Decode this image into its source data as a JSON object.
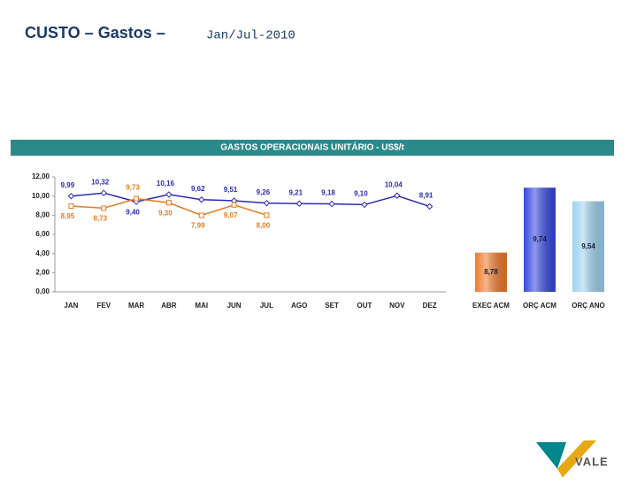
{
  "slide": {
    "title": "CUSTO – Gastos –",
    "period": "Jan/Jul-2010",
    "logo": "VALE"
  },
  "chart_data": [
    {
      "type": "line",
      "title": "GASTOS OPERACIONAIS UNITÁRIO - US$/t",
      "categories": [
        "JAN",
        "FEV",
        "MAR",
        "ABR",
        "MAI",
        "JUN",
        "JUL",
        "AGO",
        "SET",
        "OUT",
        "NOV",
        "DEZ"
      ],
      "series": [
        {
          "color": "#2a2ab8",
          "marker": "diamond",
          "values": [
            9.99,
            10.32,
            9.4,
            10.16,
            9.62,
            9.51,
            9.26,
            9.21,
            9.18,
            9.1,
            10.04,
            8.91
          ],
          "value_labels": [
            "9,99",
            "10,32",
            "9,40",
            "10,16",
            "9,62",
            "9,51",
            "9,26",
            "9,21",
            "9,18",
            "9,10",
            "10,04",
            "8,91"
          ]
        },
        {
          "color": "#e87a1e",
          "marker": "square",
          "values": [
            8.95,
            8.73,
            9.73,
            9.3,
            7.99,
            9.07,
            8.0,
            null,
            null,
            null,
            null,
            null
          ],
          "value_labels": [
            "8,95",
            "8,73",
            "9,73",
            "9,30",
            "7,99",
            "9,07",
            "8,00",
            null,
            null,
            null,
            null,
            null
          ]
        }
      ],
      "ylim": [
        0,
        12
      ],
      "yticks": [
        {
          "value": 0,
          "label": "0,00"
        },
        {
          "value": 2,
          "label": "2,00"
        },
        {
          "value": 4,
          "label": "4,00"
        },
        {
          "value": 6,
          "label": "6,00"
        },
        {
          "value": 8,
          "label": "8,00"
        },
        {
          "value": 10,
          "label": "10,00"
        },
        {
          "value": 12,
          "label": "12,00"
        }
      ]
    },
    {
      "type": "bar",
      "categories": [
        "EXEC ACM",
        "ORÇ ACM",
        "ORÇ ANO"
      ],
      "values": [
        8.78,
        9.74,
        9.54
      ],
      "value_labels": [
        "8,78",
        "9,74",
        "9,54"
      ],
      "colors": [
        "#f07a2a",
        "#3448e0",
        "#9dd3f2"
      ],
      "ylim": [
        8.2,
        9.9
      ]
    }
  ]
}
